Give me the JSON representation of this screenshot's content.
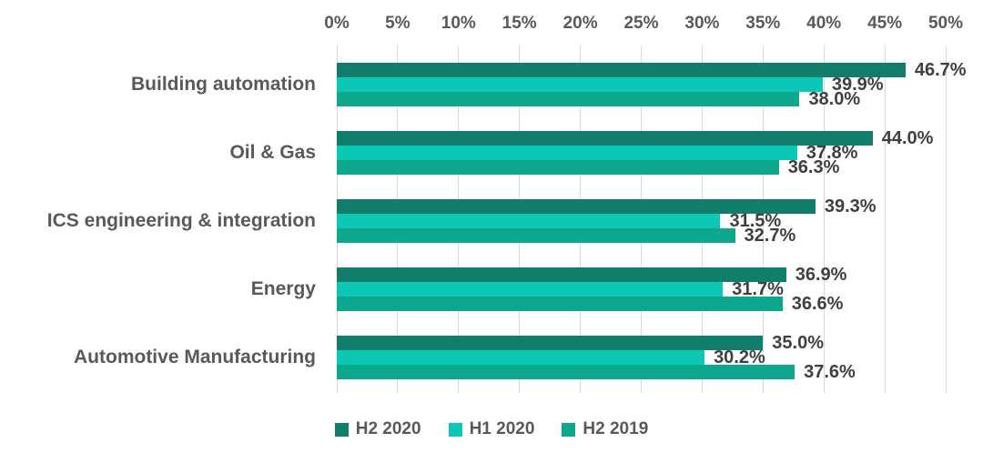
{
  "chart_data": {
    "type": "bar",
    "orientation": "horizontal",
    "title": "",
    "categories": [
      "Building automation",
      "Oil & Gas",
      "ICS engineering & integration",
      "Energy",
      "Automotive Manufacturing"
    ],
    "series": [
      {
        "name": "H2 2020",
        "color": "#117e6b",
        "values": [
          46.7,
          44.0,
          39.3,
          36.9,
          35.0
        ],
        "labels": [
          "46.7%",
          "44.0%",
          "39.3%",
          "36.9%",
          "35.0%"
        ]
      },
      {
        "name": "H1 2020",
        "color": "#0cc7b3",
        "values": [
          39.9,
          37.8,
          31.5,
          31.7,
          30.2
        ],
        "labels": [
          "39.9%",
          "37.8%",
          "31.5%",
          "31.7%",
          "30.2%"
        ]
      },
      {
        "name": "H2 2019",
        "color": "#0ca78c",
        "values": [
          38.0,
          36.3,
          32.7,
          36.6,
          37.6
        ],
        "labels": [
          "38.0%",
          "36.3%",
          "32.7%",
          "36.6%",
          "37.6%"
        ]
      }
    ],
    "x_axis": {
      "position": "top",
      "min": 0,
      "max": 50,
      "tick_step": 5,
      "ticks": [
        "0%",
        "5%",
        "10%",
        "15%",
        "20%",
        "25%",
        "30%",
        "35%",
        "40%",
        "45%",
        "50%"
      ]
    },
    "grid": true,
    "legend": {
      "position": "bottom",
      "entries": [
        "H2 2020",
        "H1 2020",
        "H2 2019"
      ]
    },
    "colors": {
      "gridline": "#d9d9d9",
      "axis_text": "#595959",
      "category_text": "#595959",
      "data_label_text": "#3f3f3f",
      "background": "#ffffff"
    }
  }
}
